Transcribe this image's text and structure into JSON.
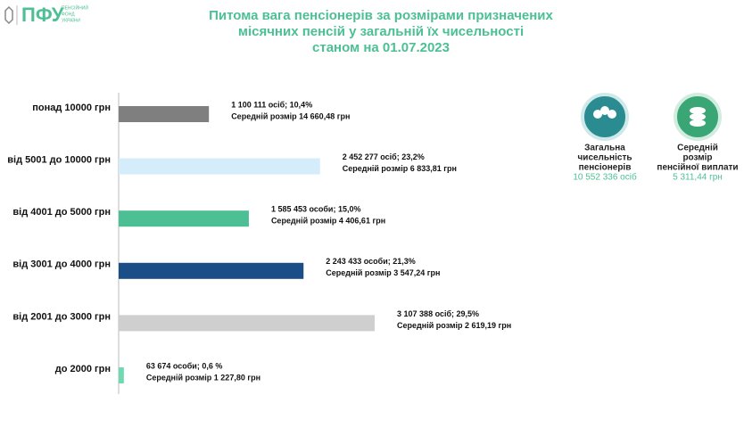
{
  "header": {
    "logo": "ПФУ",
    "org_lines": [
      "ПЕНСІЙНИЙ",
      "ФОНД",
      "УКРАЇНИ"
    ]
  },
  "chart_data": {
    "type": "hbar",
    "title": [
      "Питома вага пенсіонерів за розмірами призначених",
      "місячних пенсій у загальній їх чисельності",
      "станом на 01.07.2023"
    ],
    "categories": [
      "понад 10000 грн",
      "від 5001 до 10000 грн",
      "від 4001 до 5000 грн",
      "від 3001 до 4000 грн",
      "від 2001 до 3000 грн",
      "до 2000 грн"
    ],
    "values": [
      10.4,
      23.2,
      15.0,
      21.3,
      29.5,
      0.6
    ],
    "value_labels": [
      "1 100 111 осіб;  10,4%",
      "2 452 277 осіб; 23,2%",
      "1 585 453 особи; 15,0%",
      "2 243 433 особи; 21,3%",
      "3 107 388 осіб; 29,5%",
      "63 674 особи; 0,6 %"
    ],
    "average_labels": [
      "Середній розмір 14 660,48 грн",
      "Середній розмір 6 833,81 грн",
      "Середній розмір 4 406,61 грн",
      "Середній розмір 3 547,24 грн",
      "Середній розмір 2 619,19 грн",
      "Середній розмір 1 227,80 грн"
    ],
    "colors": [
      "#7f7f7f",
      "#d5ecfa",
      "#4dbf94",
      "#1b4d86",
      "#cfcfcf",
      "#6fd9b2"
    ]
  },
  "summary": [
    {
      "label_lines": [
        "Загальна",
        "чисельність",
        "пенсіонерів"
      ],
      "value": "10 552 336 осіб"
    },
    {
      "label_lines": [
        "Середній",
        "розмір",
        "пенсійної виплати"
      ],
      "value": "5 311,44 грн"
    }
  ]
}
